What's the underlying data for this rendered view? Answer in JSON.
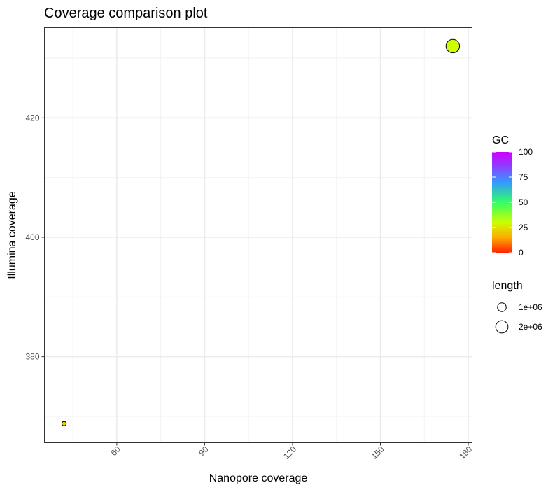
{
  "chart_data": {
    "type": "scatter",
    "title": "Coverage comparison plot",
    "xlabel": "Nanopore coverage",
    "ylabel": "Illumina coverage",
    "xlim": [
      35.3,
      181.3
    ],
    "ylim": [
      365.6,
      435.1
    ],
    "x_ticks": [
      60,
      90,
      120,
      150,
      180
    ],
    "y_ticks": [
      380,
      400,
      420
    ],
    "x_tick_labels": [
      "60",
      "90",
      "120",
      "150",
      "180"
    ],
    "y_tick_labels": [
      "380",
      "400",
      "420"
    ],
    "grid": true,
    "points": [
      {
        "x": 174.7,
        "y": 432.0,
        "gc": 30,
        "length": 2400000
      },
      {
        "x": 42.0,
        "y": 368.8,
        "gc": 22,
        "length": 250000
      }
    ],
    "legend_position": "right",
    "color_legend": {
      "title": "GC",
      "min": 0,
      "max": 100,
      "ticks": [
        "100",
        "75",
        "50",
        "25",
        "0"
      ],
      "colors": [
        "#ff2200",
        "#ffaa00",
        "#ccff00",
        "#33ff66",
        "#3399ff",
        "#9933ff",
        "#cc00ff"
      ]
    },
    "size_legend": {
      "title": "length",
      "entries": [
        {
          "label": "1e+06",
          "value": 1000000
        },
        {
          "label": "2e+06",
          "value": 2000000
        }
      ]
    }
  }
}
